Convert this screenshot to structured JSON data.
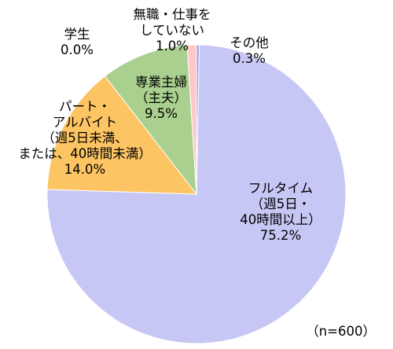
{
  "chart_data": {
    "type": "pie",
    "categories": [
      "その他",
      "フルタイム（週5日・40時間以上）",
      "パート・アルバイト（週5日未満、または、40時間未満）",
      "専業主婦（主夫）",
      "学生",
      "無職・仕事をしていない"
    ],
    "values": [
      0.3,
      75.2,
      14.0,
      9.5,
      0.0,
      1.0
    ],
    "colors": [
      "#9f9ff0",
      "#c7c7f5",
      "#fcc463",
      "#a9d08e",
      "#ff9fa0",
      "#ffc8c8"
    ],
    "labels": [
      [
        "その他",
        "0.3%"
      ],
      [
        "フルタイム",
        "（週5日・",
        "40時間以上）",
        "75.2%"
      ],
      [
        "パート・",
        "アルバイト",
        "（週5日未満、",
        "または、40時間未満）",
        "14.0%"
      ],
      [
        "専業主婦",
        "（主夫）",
        "9.5%"
      ],
      [
        "学生",
        "0.0%"
      ],
      [
        "無職・仕事を",
        "していない",
        "1.0%"
      ]
    ],
    "note": "（n=600）",
    "start_angle": "12 o'clock",
    "direction": "clockwise",
    "legend": "none"
  }
}
